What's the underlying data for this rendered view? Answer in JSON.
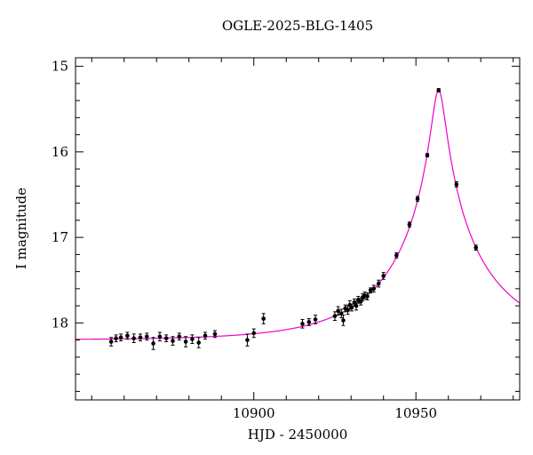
{
  "chart_data": {
    "type": "scatter",
    "title": "OGLE-2025-BLG-1405",
    "xlabel": "HJD - 2450000",
    "ylabel": "I magnitude",
    "x_range": [
      10845,
      10982
    ],
    "y_range": [
      18.9,
      14.9
    ],
    "y_inverted": true,
    "x_major_ticks": [
      10900,
      10950
    ],
    "x_minor_step": 10,
    "y_major_ticks": [
      15,
      16,
      17,
      18
    ],
    "y_minor_step": 0.2,
    "grid": false,
    "legend": "none",
    "axis_color": "#000000",
    "point_color": "#000000",
    "model_color": "#ee00cc",
    "model": {
      "type": "paczynski",
      "t0": 10957,
      "tE": 30,
      "u0": 0.068,
      "I0": 18.2
    },
    "points": [
      [
        10856,
        18.22,
        0.05
      ],
      [
        10857.5,
        18.18,
        0.04
      ],
      [
        10859,
        18.17,
        0.04
      ],
      [
        10861,
        18.15,
        0.04
      ],
      [
        10863,
        18.18,
        0.05
      ],
      [
        10865,
        18.17,
        0.04
      ],
      [
        10867,
        18.16,
        0.04
      ],
      [
        10869,
        18.24,
        0.07
      ],
      [
        10871,
        18.16,
        0.05
      ],
      [
        10873,
        18.18,
        0.04
      ],
      [
        10875,
        18.21,
        0.05
      ],
      [
        10877,
        18.16,
        0.04
      ],
      [
        10879,
        18.22,
        0.06
      ],
      [
        10881,
        18.19,
        0.05
      ],
      [
        10883,
        18.23,
        0.06
      ],
      [
        10885,
        18.15,
        0.04
      ],
      [
        10888,
        18.13,
        0.04
      ],
      [
        10898,
        18.2,
        0.07
      ],
      [
        10900,
        18.12,
        0.05
      ],
      [
        10903,
        17.95,
        0.06
      ],
      [
        10915,
        18.01,
        0.05
      ],
      [
        10917,
        17.99,
        0.04
      ],
      [
        10919,
        17.96,
        0.05
      ],
      [
        10925,
        17.92,
        0.05
      ],
      [
        10926,
        17.86,
        0.05
      ],
      [
        10927,
        17.89,
        0.05
      ],
      [
        10927.6,
        17.97,
        0.06
      ],
      [
        10928.2,
        17.83,
        0.04
      ],
      [
        10929,
        17.85,
        0.05
      ],
      [
        10929.6,
        17.79,
        0.05
      ],
      [
        10930.2,
        17.82,
        0.04
      ],
      [
        10931,
        17.76,
        0.04
      ],
      [
        10931.6,
        17.8,
        0.05
      ],
      [
        10932.2,
        17.73,
        0.04
      ],
      [
        10933,
        17.75,
        0.04
      ],
      [
        10933.6,
        17.7,
        0.04
      ],
      [
        10934.2,
        17.68,
        0.04
      ],
      [
        10935,
        17.69,
        0.04
      ],
      [
        10936,
        17.62,
        0.03
      ],
      [
        10937,
        17.6,
        0.04
      ],
      [
        10938.5,
        17.54,
        0.04
      ],
      [
        10940,
        17.45,
        0.04
      ],
      [
        10944,
        17.21,
        0.03
      ],
      [
        10948,
        16.85,
        0.03
      ],
      [
        10950.5,
        16.55,
        0.03
      ],
      [
        10953.5,
        16.04,
        0.02
      ],
      [
        10957,
        15.28,
        0.02
      ],
      [
        10962.5,
        16.38,
        0.03
      ],
      [
        10968.5,
        17.12,
        0.03
      ]
    ]
  }
}
